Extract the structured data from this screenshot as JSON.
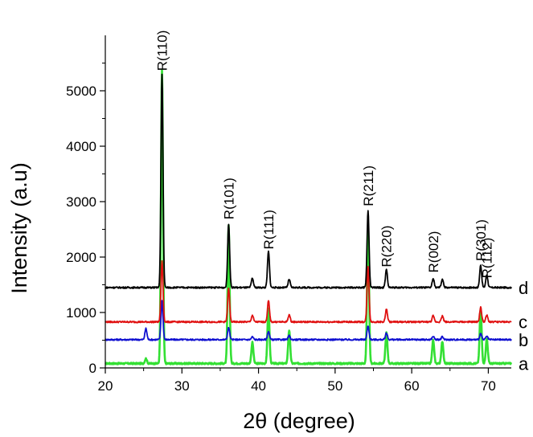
{
  "chart_data": {
    "type": "line",
    "xlabel": "2θ (degree)",
    "ylabel": "Intensity (a.u)",
    "xlim": [
      20,
      73
    ],
    "ylim": [
      0,
      6000
    ],
    "xticks": [
      20,
      30,
      40,
      50,
      60,
      70
    ],
    "yticks": [
      0,
      1000,
      2000,
      3000,
      4000,
      5000
    ],
    "grid": false,
    "legend": "none (curves tagged at right end)",
    "peak_labels": [
      {
        "text": "R(110)",
        "x": 27.4,
        "y": 5300
      },
      {
        "text": "R(101)",
        "x": 36.1,
        "y": 2620
      },
      {
        "text": "R(111)",
        "x": 41.3,
        "y": 2080
      },
      {
        "text": "R(211)",
        "x": 54.3,
        "y": 2860
      },
      {
        "text": "R(220)",
        "x": 56.7,
        "y": 1760
      },
      {
        "text": "R(002)",
        "x": 62.8,
        "y": 1660
      },
      {
        "text": "R(301)",
        "x": 69.0,
        "y": 1870
      },
      {
        "text": "R(112)",
        "x": 69.8,
        "y": 1560
      }
    ],
    "series": [
      {
        "name": "a",
        "color": "#33e033",
        "baseline": 80,
        "tag_y": 80,
        "peaks": [
          [
            25.3,
            90
          ],
          [
            27.4,
            5280
          ],
          [
            36.1,
            2480
          ],
          [
            39.2,
            380
          ],
          [
            41.3,
            1000
          ],
          [
            44.0,
            600
          ],
          [
            54.3,
            2450
          ],
          [
            56.7,
            560
          ],
          [
            62.8,
            420
          ],
          [
            64.0,
            400
          ],
          [
            69.0,
            980
          ],
          [
            69.8,
            450
          ]
        ]
      },
      {
        "name": "b",
        "color": "#1010d0",
        "baseline": 510,
        "tag_y": 510,
        "peaks": [
          [
            25.3,
            200
          ],
          [
            27.4,
            700
          ],
          [
            36.1,
            220
          ],
          [
            39.2,
            50
          ],
          [
            41.3,
            150
          ],
          [
            44.0,
            70
          ],
          [
            54.3,
            250
          ],
          [
            56.7,
            120
          ],
          [
            62.8,
            60
          ],
          [
            64.0,
            50
          ],
          [
            69.0,
            110
          ],
          [
            69.8,
            60
          ]
        ]
      },
      {
        "name": "c",
        "color": "#e01010",
        "baseline": 830,
        "tag_y": 830,
        "peaks": [
          [
            27.4,
            1100
          ],
          [
            36.1,
            600
          ],
          [
            39.2,
            120
          ],
          [
            41.3,
            380
          ],
          [
            44.0,
            130
          ],
          [
            54.3,
            1000
          ],
          [
            56.7,
            230
          ],
          [
            62.8,
            110
          ],
          [
            64.0,
            110
          ],
          [
            69.0,
            260
          ],
          [
            69.8,
            120
          ]
        ]
      },
      {
        "name": "d",
        "color": "#000000",
        "baseline": 1450,
        "tag_y": 1450,
        "peaks": [
          [
            27.4,
            3850
          ],
          [
            36.1,
            1150
          ],
          [
            39.2,
            170
          ],
          [
            41.3,
            650
          ],
          [
            44.0,
            150
          ],
          [
            54.3,
            1380
          ],
          [
            56.7,
            320
          ],
          [
            62.8,
            160
          ],
          [
            64.0,
            150
          ],
          [
            69.0,
            400
          ],
          [
            69.8,
            230
          ]
        ]
      }
    ]
  }
}
